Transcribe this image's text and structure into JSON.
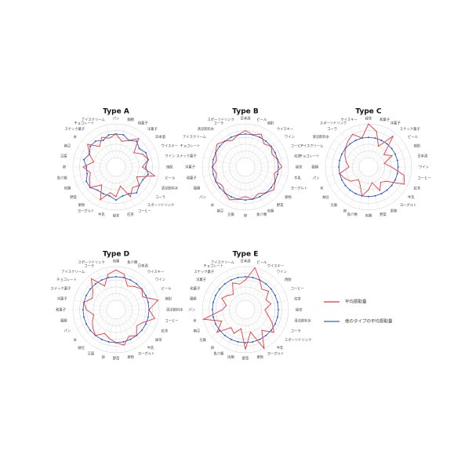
{
  "legend": [
    {
      "name": "平均摂取量",
      "color": "#e8383d"
    },
    {
      "name": "他のタイプの平均摂取量",
      "color": "#3060c8"
    }
  ],
  "chart_data": [
    {
      "type": "radar",
      "title": "Type A",
      "rlim": [
        0,
        10
      ],
      "rticks": [
        0,
        2,
        4,
        6,
        8,
        10
      ],
      "categories": [
        "パン",
        "麺類",
        "和菓子",
        "洋菓子",
        "日本酒",
        "ウイスキー",
        "ワイン",
        "焼酎",
        "ビール",
        "清涼飲料水",
        "コーラ",
        "スポーツドリンク",
        "コーヒー",
        "紅茶",
        "緑茶",
        "牛乳",
        "ヨーグルト",
        "果物",
        "野菜",
        "肉類",
        "魚介類",
        "卵",
        "豆腐",
        "納豆",
        "米",
        "スナック菓子",
        "チョコレート",
        "アイスクリーム"
      ],
      "series": [
        {
          "values": [
            7,
            5,
            6,
            8,
            4,
            6,
            7,
            5,
            9,
            4,
            6,
            5,
            7,
            3,
            6,
            5,
            8,
            4,
            7,
            6,
            5,
            7,
            4,
            6,
            8,
            5,
            7,
            6
          ]
        },
        {
          "values": [
            7,
            7,
            6,
            7,
            6,
            7,
            7,
            6,
            7,
            6,
            6,
            7,
            6,
            6,
            7,
            6,
            6,
            6,
            7,
            7,
            6,
            6,
            7,
            6,
            7,
            7,
            6,
            7
          ]
        }
      ]
    },
    {
      "type": "radar",
      "title": "Type B",
      "rlim": [
        0,
        10
      ],
      "rticks": [
        0,
        2,
        4,
        6,
        8,
        10
      ],
      "categories": [
        "日本酒",
        "ビール",
        "焼酎",
        "ウイスキー",
        "ワイン",
        "コーヒー",
        "紅茶",
        "緑茶",
        "牛乳",
        "ヨーグルト",
        "果物",
        "野菜",
        "肉類",
        "魚介類",
        "卵",
        "豆腐",
        "納豆",
        "米",
        "パン",
        "麺類",
        "和菓子",
        "洋菓子",
        "スナック菓子",
        "チョコレート",
        "アイスクリーム",
        "清涼飲料水",
        "コーラ",
        "スポーツドリンク"
      ],
      "series": [
        {
          "values": [
            8,
            7,
            8,
            6,
            7,
            6,
            7,
            8,
            6,
            7,
            8,
            7,
            6,
            7,
            6,
            7,
            8,
            7,
            6,
            7,
            6,
            7,
            6,
            7,
            8,
            7,
            6,
            7
          ]
        },
        {
          "values": [
            7,
            7,
            7,
            7,
            7,
            7,
            7,
            7,
            7,
            7,
            7,
            7,
            7,
            7,
            7,
            7,
            7,
            7,
            7,
            7,
            7,
            7,
            7,
            7,
            7,
            7,
            7,
            7
          ]
        }
      ]
    },
    {
      "type": "radar",
      "title": "Type C",
      "rlim": [
        0,
        10
      ],
      "rticks": [
        0,
        2,
        4,
        6,
        8,
        10
      ],
      "categories": [
        "緑茶",
        "和菓子",
        "洋菓子",
        "スナック菓子",
        "ビール",
        "焼酎",
        "日本酒",
        "ワイン",
        "コーヒー",
        "紅茶",
        "牛乳",
        "ヨーグルト",
        "果物",
        "野菜",
        "肉類",
        "魚介類",
        "卵",
        "豆腐",
        "納豆",
        "米",
        "パン",
        "麺類",
        "チョコレート",
        "アイスクリーム",
        "清涼飲料水",
        "コーラ",
        "スポーツドリンク",
        "ウイスキー"
      ],
      "series": [
        {
          "values": [
            10,
            8,
            4,
            9,
            3,
            5,
            2,
            4,
            8,
            9,
            4,
            3,
            5,
            2,
            4,
            6,
            3,
            2,
            4,
            5,
            6,
            3,
            4,
            5,
            6,
            7,
            8,
            6
          ]
        },
        {
          "values": [
            6,
            6,
            6,
            6,
            6,
            6,
            6,
            6,
            6,
            6,
            6,
            6,
            6,
            6,
            6,
            6,
            6,
            6,
            6,
            6,
            6,
            6,
            6,
            6,
            6,
            6,
            6,
            6
          ]
        }
      ]
    },
    {
      "type": "radar",
      "title": "Type D",
      "rlim": [
        0,
        10
      ],
      "rticks": [
        0,
        2,
        4,
        6,
        8,
        10
      ],
      "categories": [
        "肉類",
        "魚介類",
        "日本酒",
        "ウイスキー",
        "ワイン",
        "ビール",
        "焼酎",
        "清涼飲料水",
        "コーヒー",
        "紅茶",
        "緑茶",
        "牛乳",
        "ヨーグルト",
        "果物",
        "野菜",
        "卵",
        "豆腐",
        "納豆",
        "米",
        "パン",
        "麺類",
        "和菓子",
        "洋菓子",
        "スナック菓子",
        "チョコレート",
        "アイスクリーム",
        "コーラ",
        "スポーツドリンク"
      ],
      "series": [
        {
          "values": [
            9,
            8,
            5,
            6,
            7,
            6,
            10,
            7,
            9,
            6,
            5,
            7,
            6,
            8,
            7,
            6,
            5,
            7,
            6,
            5,
            4,
            6,
            7,
            5,
            6,
            9,
            5,
            8
          ]
        },
        {
          "values": [
            7,
            7,
            7,
            7,
            7,
            7,
            7,
            7,
            7,
            7,
            7,
            7,
            7,
            7,
            7,
            7,
            7,
            7,
            7,
            7,
            7,
            7,
            7,
            7,
            7,
            7,
            7,
            7
          ]
        }
      ]
    },
    {
      "type": "radar",
      "title": "Type E",
      "rlim": [
        0,
        10
      ],
      "rticks": [
        0,
        2,
        4,
        6,
        8,
        10
      ],
      "categories": [
        "日本酒",
        "ビール",
        "ウイスキー",
        "ワイン",
        "焼酎",
        "コーヒー",
        "紅茶",
        "緑茶",
        "清涼飲料水",
        "コーラ",
        "スポーツドリンク",
        "牛乳",
        "ヨーグルト",
        "果物",
        "野菜",
        "肉類",
        "魚介類",
        "卵",
        "豆腐",
        "納豆",
        "米",
        "パン",
        "麺類",
        "和菓子",
        "洋菓子",
        "スナック菓子",
        "チョコレート",
        "アイスクリーム"
      ],
      "series": [
        {
          "values": [
            6,
            10,
            7,
            5,
            6,
            4,
            5,
            3,
            4,
            6,
            8,
            5,
            10,
            4,
            9,
            3,
            5,
            4,
            8,
            5,
            10,
            4,
            3,
            5,
            4,
            3,
            6,
            5
          ]
        },
        {
          "values": [
            7,
            7,
            7,
            7,
            7,
            7,
            7,
            7,
            7,
            7,
            7,
            7,
            7,
            7,
            7,
            7,
            7,
            7,
            7,
            7,
            7,
            7,
            7,
            7,
            7,
            7,
            7,
            7
          ]
        }
      ]
    }
  ]
}
